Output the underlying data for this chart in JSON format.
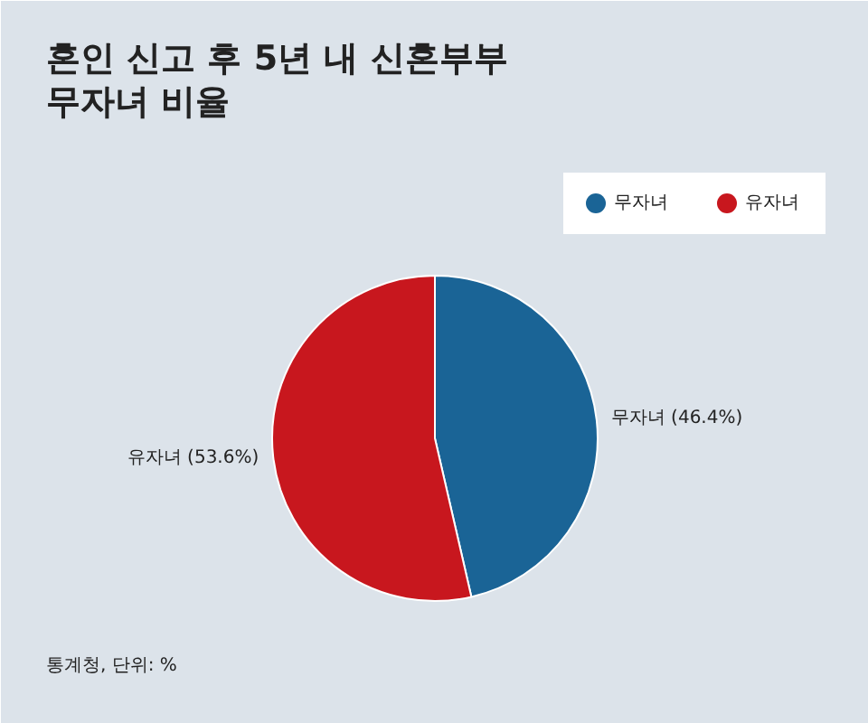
{
  "chart_data": {
    "type": "pie",
    "title": "혼인 신고 후 5년 내 신혼부부 무자녀 비율",
    "categories": [
      "무자녀",
      "유자녀"
    ],
    "values": [
      46.4,
      53.6
    ],
    "colors": [
      "#1a6496",
      "#c8171e"
    ],
    "value_labels": [
      "무자녀 (46.4%)",
      "유자녀 (53.6%)"
    ],
    "legend": "top right",
    "annotations": [
      "통계청, 단위: %"
    ]
  }
}
